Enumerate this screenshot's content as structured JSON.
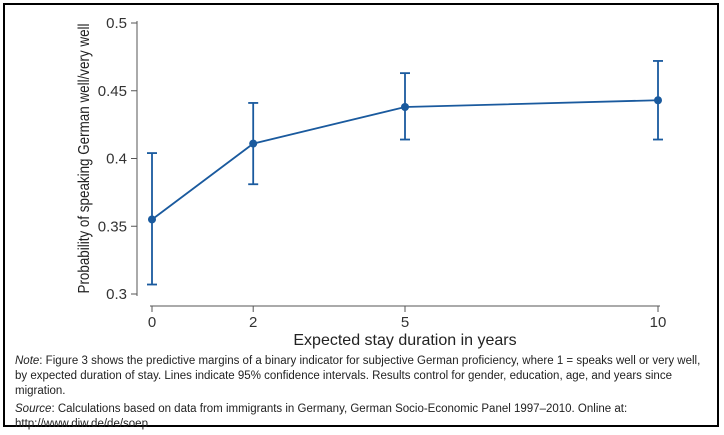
{
  "chart_data": {
    "type": "line",
    "title": "",
    "xlabel": "Expected stay duration in years",
    "ylabel": "Probability of speaking German well/very well",
    "x_ticks": [
      0,
      2,
      5,
      10
    ],
    "y_ticks": [
      "0.3",
      "0.35",
      "0.4",
      "0.45",
      "0.5"
    ],
    "xlim": [
      0,
      10
    ],
    "ylim": [
      0.3,
      0.5
    ],
    "grid": false,
    "series": [
      {
        "x": [
          0,
          2,
          5,
          10
        ],
        "y": [
          0.355,
          0.411,
          0.438,
          0.443
        ],
        "ci_low": [
          0.307,
          0.381,
          0.414,
          0.414
        ],
        "ci_high": [
          0.404,
          0.441,
          0.463,
          0.472
        ],
        "color": "#1a5a9e"
      }
    ]
  },
  "note": {
    "lead": "Note",
    "text": ": Figure 3 shows the predictive margins of a binary indicator for subjective German proficiency, where 1 = speaks well or very well, by expected duration of stay. Lines indicate 95% confidence intervals. Results control for gender, education, age, and years since migration."
  },
  "source": {
    "lead": "Source",
    "text": ": Calculations based on data from immigrants in Germany, German Socio-Economic Panel 1997–2010. Online at: http://www.diw.de/de/soep"
  }
}
